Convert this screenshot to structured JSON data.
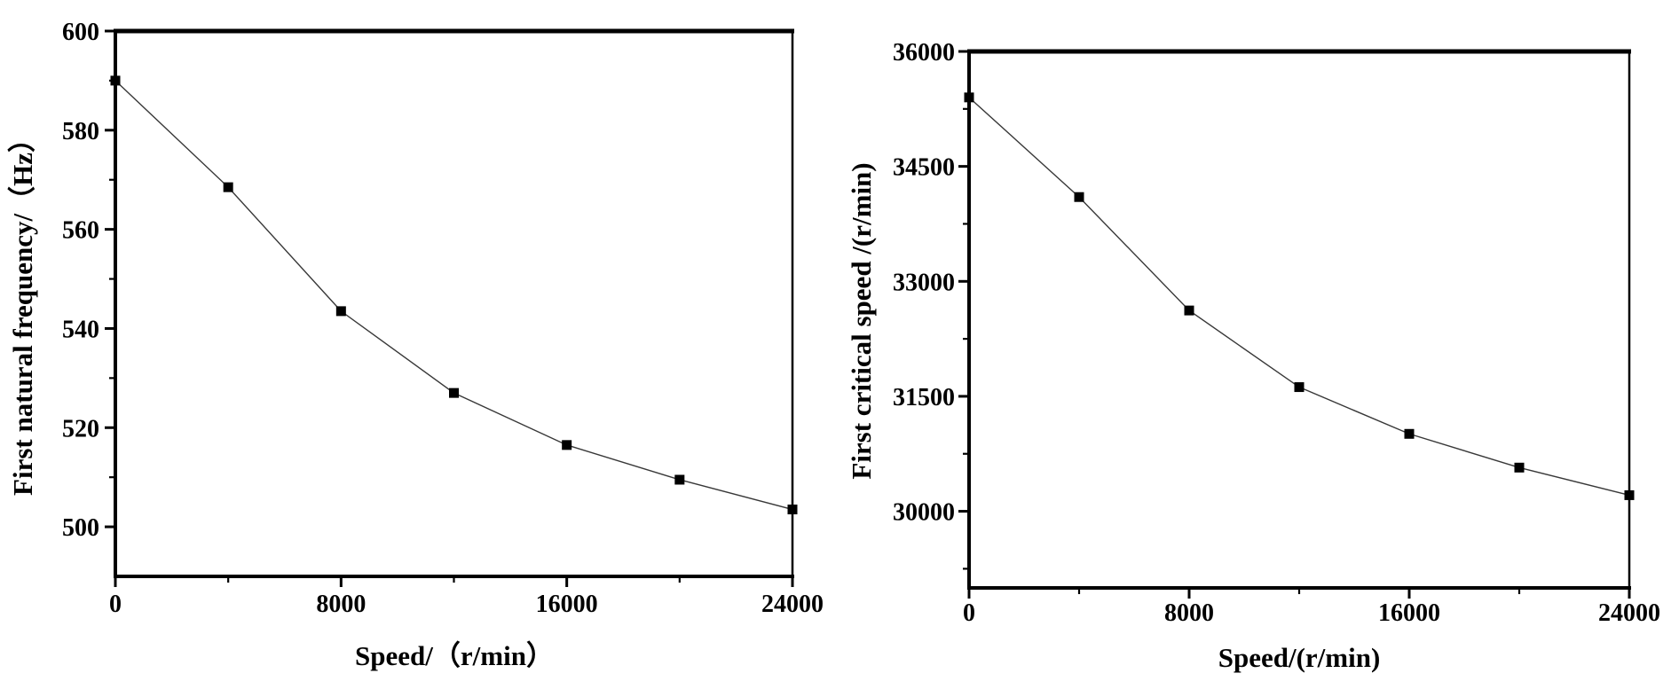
{
  "figure": {
    "background_color": "#ffffff",
    "axis_color": "#000000",
    "text_color": "#000000"
  },
  "chart_data": [
    {
      "type": "line",
      "title": "",
      "xlabel": "Speed/（r/min）",
      "ylabel": "First natural frequency/（Hz）",
      "x": [
        0,
        4000,
        8000,
        12000,
        16000,
        20000,
        24000
      ],
      "y": [
        590,
        568.5,
        543.5,
        527,
        516.5,
        509.5,
        503.5
      ],
      "xlim": [
        0,
        24000
      ],
      "ylim": [
        490,
        600
      ],
      "xticks_major": [
        0,
        8000,
        16000,
        24000
      ],
      "xtick_labels": [
        "0",
        "8000",
        "16000",
        "24000"
      ],
      "xticks_minor": [
        4000,
        12000,
        20000
      ],
      "yticks_major": [
        500,
        520,
        540,
        560,
        580,
        600
      ],
      "ytick_labels": [
        "500",
        "520",
        "540",
        "560",
        "580",
        "600"
      ],
      "yticks_minor": [
        510,
        530,
        550,
        570,
        590
      ],
      "marker": "square",
      "marker_color": "#000000",
      "line_color": "#383838",
      "grid": false,
      "legend": null
    },
    {
      "type": "line",
      "title": "",
      "xlabel": "Speed/(r/min)",
      "ylabel": "First critical speed /(r/min)",
      "x": [
        0,
        4000,
        8000,
        12000,
        16000,
        20000,
        24000
      ],
      "y": [
        35400,
        34100,
        32620,
        31620,
        31010,
        30570,
        30210
      ],
      "xlim": [
        0,
        24000
      ],
      "ylim": [
        29000,
        36000
      ],
      "xticks_major": [
        0,
        8000,
        16000,
        24000
      ],
      "xtick_labels": [
        "0",
        "8000",
        "16000",
        "24000"
      ],
      "xticks_minor": [
        4000,
        12000,
        20000
      ],
      "yticks_major": [
        30000,
        31500,
        33000,
        34500,
        36000
      ],
      "ytick_labels": [
        "30000",
        "31500",
        "33000",
        "34500",
        "36000"
      ],
      "yticks_minor": [
        29250,
        30750,
        32250,
        33750,
        35250
      ],
      "marker": "square",
      "marker_color": "#000000",
      "line_color": "#383838",
      "grid": false,
      "legend": null
    }
  ]
}
